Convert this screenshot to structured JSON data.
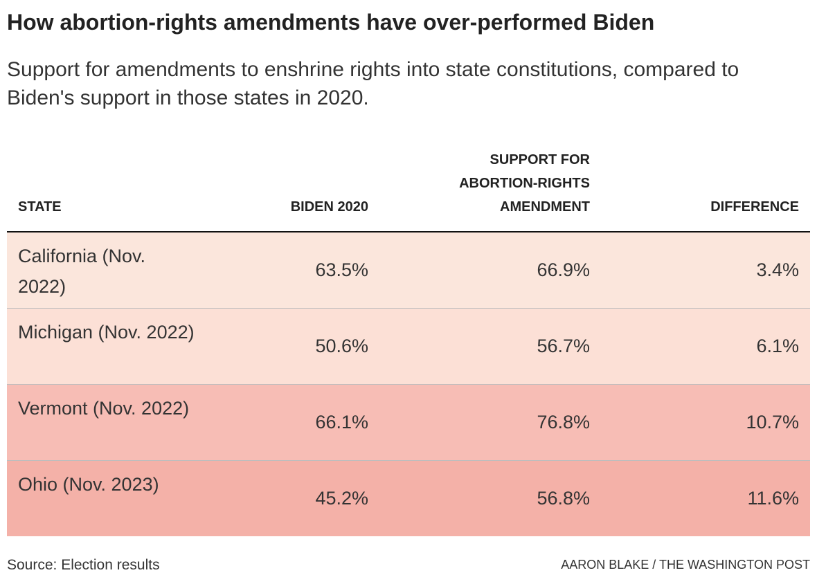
{
  "title": "How abortion-rights amendments have over-performed Biden",
  "subtitle": "Support for amendments to enshrine rights into state constitutions, compared to Biden's support in those states in 2020.",
  "source": "Source: Election results",
  "credit": "AARON BLAKE / THE WASHINGTON POST",
  "colors": {
    "row_low": "#fbe6dc",
    "row_mid": "#fce0d6",
    "row_high": "#f7bdb5",
    "row_highest": "#f4b1a8"
  },
  "chart_data": {
    "type": "table",
    "columns": [
      "STATE",
      "BIDEN 2020",
      "SUPPORT FOR ABORTION-RIGHTS AMENDMENT",
      "DIFFERENCE"
    ],
    "rows": [
      {
        "state": "California (Nov. 2022)",
        "biden": "63.5%",
        "amendment": "66.9%",
        "difference": "3.4%",
        "color": "#fbe6dc"
      },
      {
        "state": "Michigan (Nov. 2022)",
        "biden": "50.6%",
        "amendment": "56.7%",
        "difference": "6.1%",
        "color": "#fce0d6"
      },
      {
        "state": "Vermont (Nov. 2022)",
        "biden": "66.1%",
        "amendment": "76.8%",
        "difference": "10.7%",
        "color": "#f7bdb5"
      },
      {
        "state": "Ohio (Nov. 2023)",
        "biden": "45.2%",
        "amendment": "56.8%",
        "difference": "11.6%",
        "color": "#f4b1a8"
      }
    ]
  }
}
